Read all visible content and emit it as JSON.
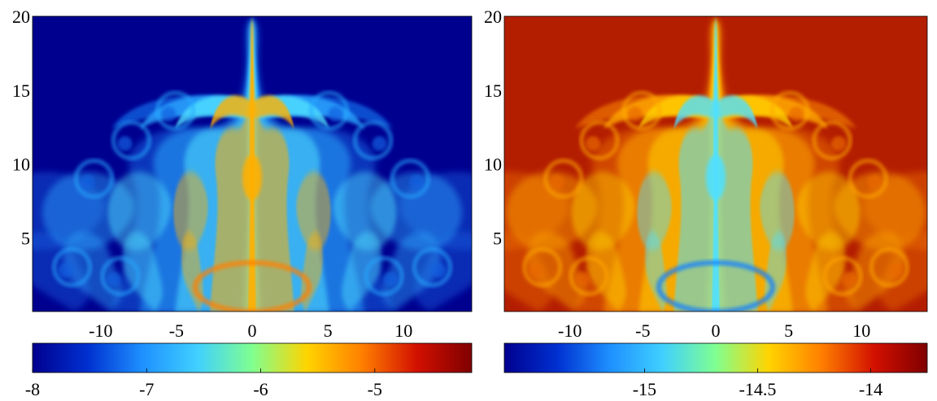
{
  "chart_data": [
    {
      "type": "heatmap",
      "title": "",
      "xlabel": "",
      "ylabel": "",
      "xlim": [
        -14.5,
        14.5
      ],
      "ylim": [
        0,
        20
      ],
      "x_ticks": [
        {
          "value": -10,
          "label": "-10"
        },
        {
          "value": -5,
          "label": "-5"
        },
        {
          "value": 0,
          "label": "0"
        },
        {
          "value": 5,
          "label": "5"
        },
        {
          "value": 10,
          "label": "10"
        }
      ],
      "y_ticks": [
        {
          "value": 5,
          "label": "5"
        },
        {
          "value": 10,
          "label": "10"
        },
        {
          "value": 15,
          "label": "15"
        },
        {
          "value": 20,
          "label": "20"
        }
      ],
      "background_color": "#00008f",
      "colormap": [
        "#00008f",
        "#0030d0",
        "#1e90ff",
        "#40d0ff",
        "#80ff90",
        "#ffd400",
        "#ff7f00",
        "#d21000",
        "#7f0000"
      ],
      "colorbar": {
        "range": [
          -8,
          -4.15
        ],
        "ticks": [
          {
            "value": -8,
            "label": "-8"
          },
          {
            "value": -7,
            "label": "-7"
          },
          {
            "value": -6,
            "label": "-6"
          },
          {
            "value": -5,
            "label": "-5"
          }
        ]
      }
    },
    {
      "type": "heatmap",
      "title": "",
      "xlabel": "",
      "ylabel": "",
      "xlim": [
        -14.5,
        14.5
      ],
      "ylim": [
        0,
        20
      ],
      "x_ticks": [
        {
          "value": -10,
          "label": "-10"
        },
        {
          "value": -5,
          "label": "-5"
        },
        {
          "value": 0,
          "label": "0"
        },
        {
          "value": 5,
          "label": "5"
        },
        {
          "value": 10,
          "label": "10"
        }
      ],
      "y_ticks": [
        {
          "value": 5,
          "label": "5"
        },
        {
          "value": 10,
          "label": "10"
        },
        {
          "value": 15,
          "label": "15"
        },
        {
          "value": 20,
          "label": "20"
        }
      ],
      "background_color": "#b41e00",
      "colormap": [
        "#00008f",
        "#0030d0",
        "#1e90ff",
        "#40d0ff",
        "#80ff90",
        "#ffd400",
        "#ff7f00",
        "#d21000",
        "#7f0000"
      ],
      "colorbar": {
        "range": [
          -15.62,
          -13.75
        ],
        "ticks": [
          {
            "value": -15,
            "label": "-15"
          },
          {
            "value": -14.5,
            "label": "-14.5"
          },
          {
            "value": -14,
            "label": "-14"
          }
        ]
      }
    }
  ]
}
